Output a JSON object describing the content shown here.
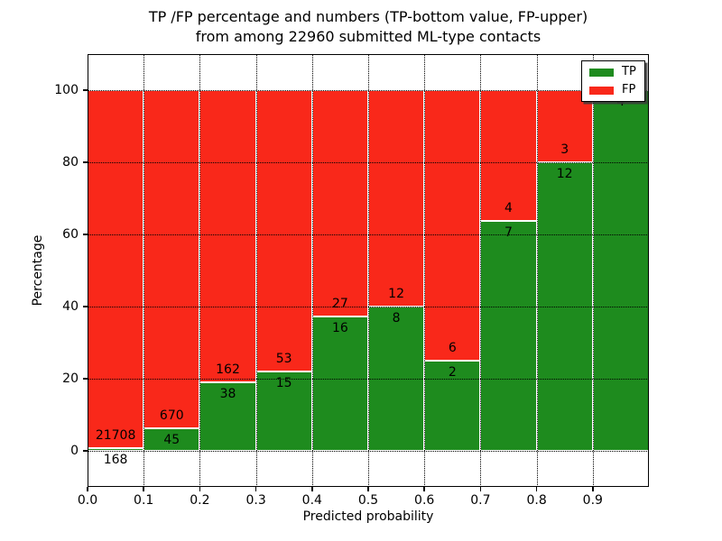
{
  "figure": {
    "title_line1": "TP /FP percentage and numbers (TP-bottom value, FP-upper)",
    "title_line2": "from among 22960 submitted ML-type contacts",
    "xlabel": "Predicted probability",
    "ylabel": "Percentage"
  },
  "chart_data": {
    "type": "bar",
    "stacked": true,
    "orientation": "vertical",
    "title": "TP /FP percentage and numbers (TP-bottom value, FP-upper)\nfrom among 22960 submitted ML-type contacts",
    "xlabel": "Predicted probability",
    "ylabel": "Percentage",
    "total_contacts": 22960,
    "categories": [
      "0.0-0.1",
      "0.1-0.2",
      "0.2-0.3",
      "0.3-0.4",
      "0.4-0.5",
      "0.5-0.6",
      "0.6-0.7",
      "0.7-0.8",
      "0.8-0.9",
      "0.9-1.0"
    ],
    "bin_starts": [
      0.0,
      0.1,
      0.2,
      0.3,
      0.4,
      0.5,
      0.6,
      0.7,
      0.8,
      0.9
    ],
    "bin_width": 0.1,
    "series": [
      {
        "name": "TP",
        "color": "#1e8b1e",
        "counts": [
          168,
          45,
          38,
          15,
          16,
          8,
          2,
          7,
          12,
          4
        ],
        "percent": [
          0.77,
          6.29,
          19.0,
          22.06,
          37.21,
          40.0,
          25.0,
          63.64,
          80.0,
          100.0
        ]
      },
      {
        "name": "FP",
        "color": "#f9281a",
        "counts": [
          21708,
          670,
          162,
          53,
          27,
          12,
          6,
          4,
          3,
          0
        ],
        "percent": [
          99.23,
          93.71,
          81.0,
          77.94,
          62.79,
          60.0,
          75.0,
          36.36,
          20.0,
          0.0
        ]
      }
    ],
    "xticks": [
      "0.0",
      "0.1",
      "0.2",
      "0.3",
      "0.4",
      "0.5",
      "0.6",
      "0.7",
      "0.8",
      "0.9"
    ],
    "yticks": [
      0,
      20,
      40,
      60,
      80,
      100
    ],
    "xlim": [
      0.0,
      1.0
    ],
    "ylim": [
      -10,
      110
    ],
    "grid": true,
    "grid_style": "dotted",
    "grid_color": "#000000",
    "bar_edge_color": "#ffffff",
    "legend": {
      "position": "upper right",
      "entries": [
        {
          "label": "TP",
          "color": "#1e8b1e"
        },
        {
          "label": "FP",
          "color": "#f9281a"
        }
      ]
    }
  }
}
